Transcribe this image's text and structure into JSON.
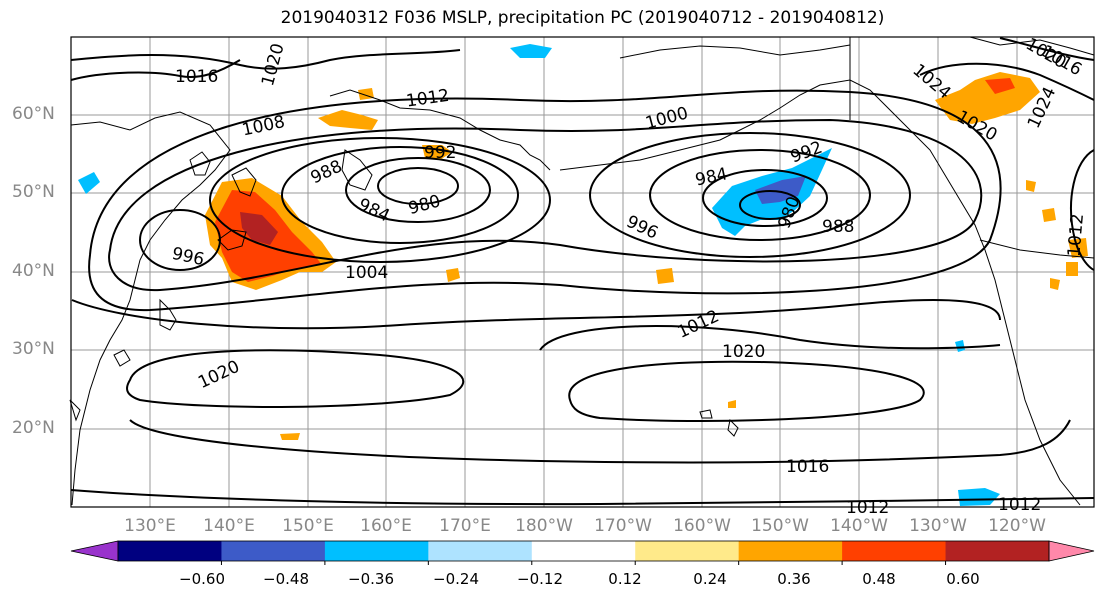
{
  "title": "2019040312 F036 MSLP, precipitation PC (2019040712 - 2019040812)",
  "lat_labels": [
    "60°N",
    "50°N",
    "40°N",
    "30°N",
    "20°N"
  ],
  "lon_labels": [
    "130°E",
    "140°E",
    "150°E",
    "160°E",
    "170°E",
    "180°W",
    "170°W",
    "160°W",
    "150°W",
    "140°W",
    "130°W",
    "120°W"
  ],
  "isobar_labels": [
    {
      "text": "1016"
    },
    {
      "text": "1020"
    },
    {
      "text": "1008"
    },
    {
      "text": "1012"
    },
    {
      "text": "988"
    },
    {
      "text": "992"
    },
    {
      "text": "984"
    },
    {
      "text": "980"
    },
    {
      "text": "996"
    },
    {
      "text": "1004"
    },
    {
      "text": "1000"
    },
    {
      "text": "984"
    },
    {
      "text": "992"
    },
    {
      "text": "980"
    },
    {
      "text": "988"
    },
    {
      "text": "996"
    },
    {
      "text": "1012"
    },
    {
      "text": "1020"
    },
    {
      "text": "1020"
    },
    {
      "text": "1016"
    },
    {
      "text": "1012"
    },
    {
      "text": "1012"
    },
    {
      "text": "1024"
    },
    {
      "text": "1020"
    },
    {
      "text": "1024"
    },
    {
      "text": "1016"
    },
    {
      "text": "1020"
    },
    {
      "text": "1012"
    }
  ],
  "colorbar": {
    "colors": [
      "#9933cc",
      "#000080",
      "#3d5bc8",
      "#00bfff",
      "#aee3ff",
      "#ffffff",
      "#ffea8a",
      "#ffa500",
      "#ff4000",
      "#b22222",
      "#ff88aa"
    ],
    "ticks": [
      "−0.60",
      "−0.48",
      "−0.36",
      "−0.24",
      "−0.12",
      "0.12",
      "0.24",
      "0.36",
      "0.48",
      "0.60"
    ]
  },
  "colors": {
    "positive_precip": "#ff4000",
    "positive_light": "#ffa500",
    "negative_precip": "#00bfff",
    "negative_dark": "#3d5bc8"
  }
}
